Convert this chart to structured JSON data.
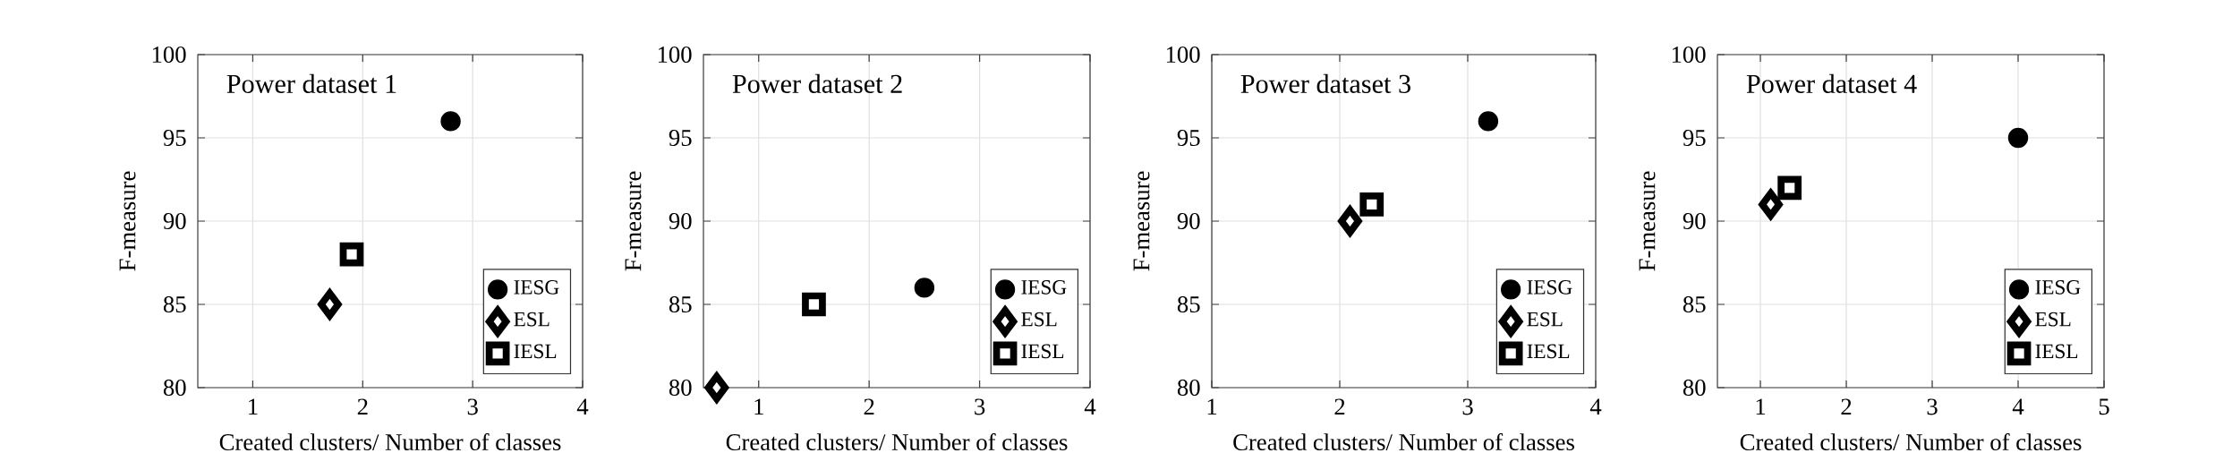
{
  "chart_data": [
    {
      "type": "scatter",
      "title": "Power dataset 1",
      "xlabel": "Created clusters/ Number of classes",
      "ylabel": "F-measure",
      "xlim": [
        0.5,
        4
      ],
      "ylim": [
        80,
        100
      ],
      "xticks": [
        1,
        2,
        3,
        4
      ],
      "yticks": [
        80,
        85,
        90,
        95,
        100
      ],
      "grid": true,
      "legend": "bottom right",
      "series": [
        {
          "name": "IESG",
          "color": "#000000",
          "marker": "circle",
          "x": [
            2.8
          ],
          "values": [
            96
          ]
        },
        {
          "name": "ESL",
          "color": "#000000",
          "marker": "diamond",
          "x": [
            1.7
          ],
          "values": [
            85
          ]
        },
        {
          "name": "IESL",
          "color": "#000000",
          "marker": "square",
          "x": [
            1.9
          ],
          "values": [
            88
          ]
        }
      ]
    },
    {
      "type": "scatter",
      "title": "Power dataset 2",
      "xlabel": "Created clusters/ Number of classes",
      "ylabel": "F-measure",
      "xlim": [
        0.5,
        4
      ],
      "ylim": [
        80,
        100
      ],
      "xticks": [
        1,
        2,
        3,
        4
      ],
      "yticks": [
        80,
        85,
        90,
        95,
        100
      ],
      "grid": true,
      "legend": "bottom right",
      "series": [
        {
          "name": "IESG",
          "color": "#000000",
          "marker": "circle",
          "x": [
            2.5
          ],
          "values": [
            86
          ]
        },
        {
          "name": "ESL",
          "color": "#000000",
          "marker": "diamond",
          "x": [
            0.62
          ],
          "values": [
            80
          ]
        },
        {
          "name": "IESL",
          "color": "#000000",
          "marker": "square",
          "x": [
            1.5
          ],
          "values": [
            85
          ]
        }
      ]
    },
    {
      "type": "scatter",
      "title": "Power dataset 3",
      "xlabel": "Created clusters/ Number of classes",
      "ylabel": "F-measure",
      "xlim": [
        1,
        4
      ],
      "ylim": [
        80,
        100
      ],
      "xticks": [
        1,
        2,
        3,
        4
      ],
      "yticks": [
        80,
        85,
        90,
        95,
        100
      ],
      "grid": true,
      "legend": "bottom right",
      "series": [
        {
          "name": "IESG",
          "color": "#000000",
          "marker": "circle",
          "x": [
            3.16
          ],
          "values": [
            96
          ]
        },
        {
          "name": "ESL",
          "color": "#000000",
          "marker": "diamond",
          "x": [
            2.08
          ],
          "values": [
            90
          ]
        },
        {
          "name": "IESL",
          "color": "#000000",
          "marker": "square",
          "x": [
            2.25
          ],
          "values": [
            91
          ]
        }
      ]
    },
    {
      "type": "scatter",
      "title": "Power dataset 4",
      "xlabel": "Created clusters/ Number of classes",
      "ylabel": "F-measure",
      "xlim": [
        0.5,
        5
      ],
      "ylim": [
        80,
        100
      ],
      "xticks": [
        1,
        2,
        3,
        4,
        5
      ],
      "yticks": [
        80,
        85,
        90,
        95,
        100
      ],
      "grid": true,
      "legend": "bottom right",
      "series": [
        {
          "name": "IESG",
          "color": "#000000",
          "marker": "circle",
          "x": [
            4.0
          ],
          "values": [
            95
          ]
        },
        {
          "name": "ESL",
          "color": "#000000",
          "marker": "diamond",
          "x": [
            1.12
          ],
          "values": [
            91
          ]
        },
        {
          "name": "IESL",
          "color": "#000000",
          "marker": "square",
          "x": [
            1.34
          ],
          "values": [
            92
          ]
        }
      ]
    }
  ]
}
